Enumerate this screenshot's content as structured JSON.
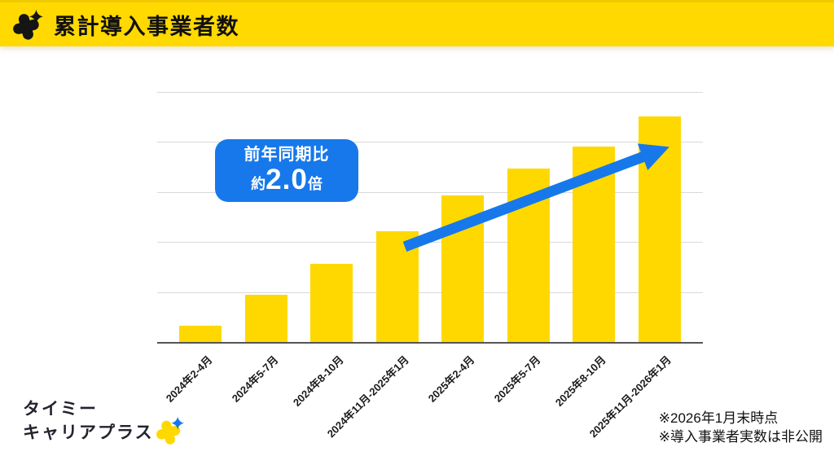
{
  "header": {
    "title": "累計導入事業者数",
    "background": "#FFD900"
  },
  "chart_data": {
    "type": "bar",
    "title": "累計導入事業者数",
    "categories": [
      "2024年2-4月",
      "2024年5-7月",
      "2024年8-10月",
      "2024年11月-2025年1月",
      "2025年2-4月",
      "2025年5-7月",
      "2025年8-10月",
      "2025年11月-2026年1月"
    ],
    "relative_values": [
      0.33,
      0.94,
      1.56,
      2.21,
      2.93,
      3.47,
      3.91,
      4.51
    ],
    "values_hidden_note": "導入事業者実数は非公開",
    "ylim": [
      0,
      5
    ],
    "gridline_interval": 1,
    "grid_on": true,
    "y_axis_labels_shown": false,
    "bar_color": "#FFD800",
    "xlabel": "",
    "ylabel": ""
  },
  "annotation": {
    "line1": "前年同期比",
    "prefix": "約",
    "value": "2.0",
    "suffix": "倍",
    "background": "#1678EB"
  },
  "trend_arrow": {
    "direction": "up-right",
    "color": "#1678EB"
  },
  "footer": {
    "logo": {
      "line1": "タイミー",
      "line2": "キャリアプラス"
    },
    "footnotes": [
      "※2026年1月末時点",
      "※導入事業者実数は非公開"
    ]
  },
  "colors": {
    "brand_yellow": "#FFD900",
    "accent_blue": "#1678EB",
    "gridline": "#D9D9D9",
    "axis": "#555555"
  }
}
